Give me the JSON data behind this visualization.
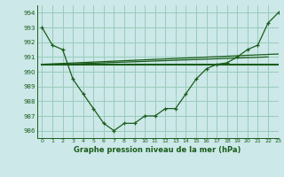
{
  "line1_x": [
    0,
    1,
    2,
    3,
    4,
    5,
    6,
    7,
    8,
    9,
    10,
    11,
    12,
    13,
    14,
    15,
    16,
    17,
    18,
    19,
    20,
    21,
    22,
    23
  ],
  "line1_y": [
    993.0,
    991.8,
    991.5,
    989.5,
    988.5,
    987.5,
    986.5,
    986.0,
    986.5,
    986.5,
    987.0,
    987.0,
    987.5,
    987.5,
    988.5,
    989.5,
    990.2,
    990.5,
    990.6,
    991.0,
    991.5,
    991.8,
    993.3,
    994.0
  ],
  "line2_x": [
    0,
    23
  ],
  "line2_y": [
    990.5,
    990.5
  ],
  "line3_x": [
    0,
    23
  ],
  "line3_y": [
    990.5,
    991.2
  ],
  "line4_x": [
    2,
    22
  ],
  "line4_y": [
    990.5,
    991.0
  ],
  "bg_color": "#cce8e8",
  "grid_color": "#99ccbb",
  "line_color": "#1a5c1a",
  "xlabel": "Graphe pression niveau de la mer (hPa)",
  "ylim": [
    985.5,
    994.5
  ],
  "xlim": [
    -0.5,
    23
  ],
  "yticks": [
    986,
    987,
    988,
    989,
    990,
    991,
    992,
    993,
    994
  ],
  "xticks": [
    0,
    1,
    2,
    3,
    4,
    5,
    6,
    7,
    8,
    9,
    10,
    11,
    12,
    13,
    14,
    15,
    16,
    17,
    18,
    19,
    20,
    21,
    22,
    23
  ]
}
